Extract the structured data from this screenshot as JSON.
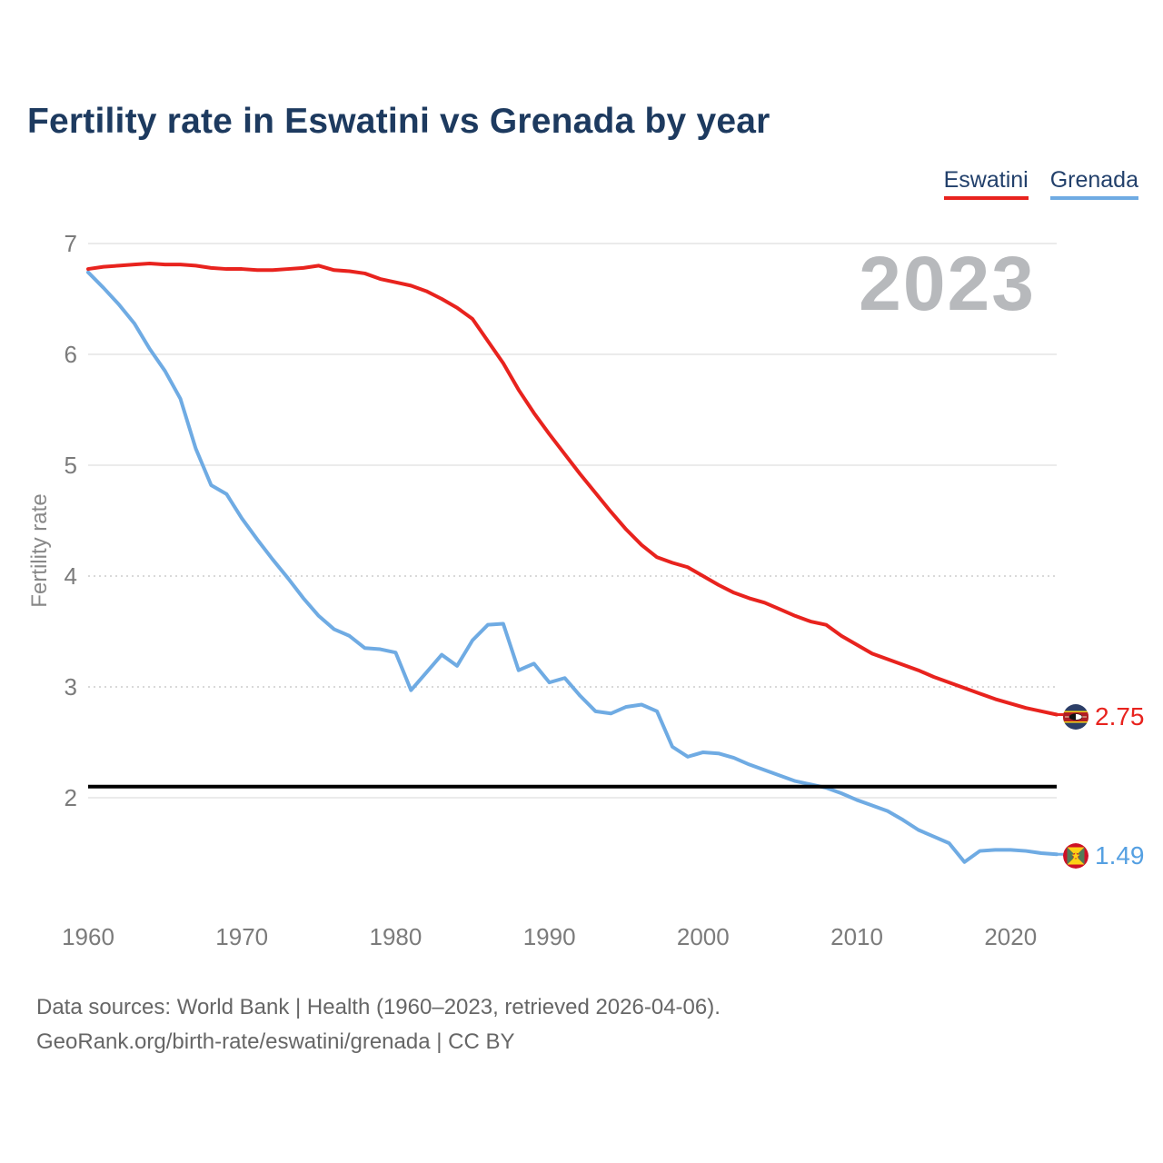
{
  "title": "Fertility rate in Eswatini vs Grenada by year",
  "legend": [
    {
      "label": "Eswatini",
      "color": "#e8231e"
    },
    {
      "label": "Grenada",
      "color": "#6fabe3"
    }
  ],
  "watermark": "2023",
  "end_labels": [
    {
      "series": "Eswatini",
      "value": "2.75",
      "icon": "eswatini-flag-icon",
      "color": "#e8231e"
    },
    {
      "series": "Grenada",
      "value": "1.49",
      "icon": "grenada-flag-icon",
      "color": "#55a0e2"
    }
  ],
  "footer": {
    "line1": "Data sources: World Bank | Health (1960–2023, retrieved 2026-04-06).",
    "line2": "GeoRank.org/birth-rate/eswatini/grenada | CC BY"
  },
  "chart_data": {
    "type": "line",
    "title": "Fertility rate in Eswatini vs Grenada by year",
    "xlabel": "",
    "ylabel": "Fertility rate",
    "x_ticks": [
      1960,
      1970,
      1980,
      1990,
      2000,
      2010,
      2020
    ],
    "y_ticks": [
      7,
      6,
      5,
      4,
      3,
      2
    ],
    "dotted_y_ticks": [
      4,
      3
    ],
    "xlim": [
      1960,
      2023
    ],
    "ylim": [
      1.3,
      7.0
    ],
    "grid": "on",
    "legend_position": "top-right",
    "reference_line": {
      "value": 2.1,
      "color": "#000000"
    },
    "x": [
      1960,
      1961,
      1962,
      1963,
      1964,
      1965,
      1966,
      1967,
      1968,
      1969,
      1970,
      1971,
      1972,
      1973,
      1974,
      1975,
      1976,
      1977,
      1978,
      1979,
      1980,
      1981,
      1982,
      1983,
      1984,
      1985,
      1986,
      1987,
      1988,
      1989,
      1990,
      1991,
      1992,
      1993,
      1994,
      1995,
      1996,
      1997,
      1998,
      1999,
      2000,
      2001,
      2002,
      2003,
      2004,
      2005,
      2006,
      2007,
      2008,
      2009,
      2010,
      2011,
      2012,
      2013,
      2014,
      2015,
      2016,
      2017,
      2018,
      2019,
      2020,
      2021,
      2022,
      2023
    ],
    "series": [
      {
        "name": "Eswatini",
        "color": "#e8231e",
        "values": [
          6.77,
          6.79,
          6.8,
          6.81,
          6.82,
          6.81,
          6.81,
          6.8,
          6.78,
          6.77,
          6.77,
          6.76,
          6.76,
          6.77,
          6.78,
          6.8,
          6.76,
          6.75,
          6.73,
          6.68,
          6.65,
          6.62,
          6.57,
          6.5,
          6.42,
          6.32,
          6.12,
          5.92,
          5.68,
          5.47,
          5.28,
          5.1,
          4.92,
          4.75,
          4.58,
          4.42,
          4.28,
          4.17,
          4.12,
          4.08,
          4.0,
          3.92,
          3.85,
          3.8,
          3.76,
          3.7,
          3.64,
          3.59,
          3.56,
          3.46,
          3.38,
          3.3,
          3.25,
          3.2,
          3.15,
          3.09,
          3.04,
          2.99,
          2.94,
          2.89,
          2.85,
          2.81,
          2.78,
          2.75
        ]
      },
      {
        "name": "Grenada",
        "color": "#6fabe3",
        "values": [
          6.74,
          6.6,
          6.45,
          6.28,
          6.05,
          5.85,
          5.6,
          5.15,
          4.82,
          4.74,
          4.52,
          4.33,
          4.15,
          3.98,
          3.8,
          3.64,
          3.52,
          3.46,
          3.35,
          3.34,
          3.31,
          2.97,
          3.13,
          3.29,
          3.19,
          3.42,
          3.56,
          3.57,
          3.15,
          3.21,
          3.04,
          3.08,
          2.92,
          2.78,
          2.76,
          2.82,
          2.84,
          2.78,
          2.46,
          2.37,
          2.41,
          2.4,
          2.36,
          2.3,
          2.25,
          2.2,
          2.15,
          2.12,
          2.09,
          2.04,
          1.98,
          1.93,
          1.88,
          1.8,
          1.71,
          1.65,
          1.59,
          1.42,
          1.52,
          1.53,
          1.53,
          1.52,
          1.5,
          1.49
        ]
      }
    ]
  }
}
